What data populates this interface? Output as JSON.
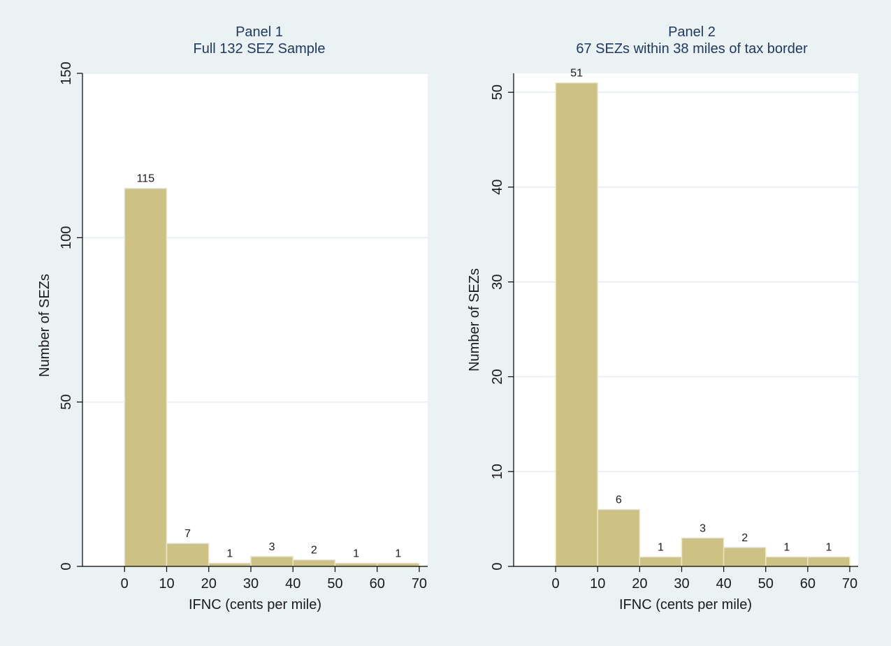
{
  "figure": {
    "background": "#eaf2f3",
    "plot_background": "#ffffff",
    "bar_fill": "#cdc284",
    "bar_stroke": "#ece7c8",
    "grid_color": "#e4eef0",
    "text_color": "#1a1a1a",
    "title_color": "#1f3864"
  },
  "chart_data": [
    {
      "type": "bar",
      "title": "Panel 1",
      "subtitle": "Full 132 SEZ Sample",
      "xlabel": "IFNC (cents per mile)",
      "ylabel": "Number of SEZs",
      "bins": [
        [
          0,
          10
        ],
        [
          10,
          20
        ],
        [
          20,
          30
        ],
        [
          30,
          40
        ],
        [
          40,
          50
        ],
        [
          50,
          60
        ],
        [
          60,
          70
        ]
      ],
      "values": [
        115,
        7,
        1,
        3,
        2,
        1,
        1
      ],
      "labels": [
        "115",
        "7",
        "1",
        "3",
        "2",
        "1",
        "1"
      ],
      "xlim": [
        -10,
        72
      ],
      "ylim": [
        0,
        150
      ],
      "xticks": [
        0,
        10,
        20,
        30,
        40,
        50,
        60,
        70
      ],
      "xtick_labels": [
        "0",
        "10",
        "20",
        "30",
        "40",
        "50",
        "60",
        "70"
      ],
      "yticks": [
        0,
        50,
        100,
        150
      ],
      "ytick_labels": [
        "0",
        "50",
        "100",
        "150"
      ],
      "grid": true,
      "legend": "none"
    },
    {
      "type": "bar",
      "title": "Panel 2",
      "subtitle": "67 SEZs within 38 miles of tax border",
      "xlabel": "IFNC (cents per mile)",
      "ylabel": "Number of SEZs",
      "bins": [
        [
          0,
          10
        ],
        [
          10,
          20
        ],
        [
          20,
          30
        ],
        [
          30,
          40
        ],
        [
          40,
          50
        ],
        [
          50,
          60
        ],
        [
          60,
          70
        ]
      ],
      "values": [
        51,
        6,
        1,
        3,
        2,
        1,
        1
      ],
      "labels": [
        "51",
        "6",
        "1",
        "3",
        "2",
        "1",
        "1"
      ],
      "xlim": [
        -10,
        72
      ],
      "ylim": [
        0,
        52
      ],
      "xticks": [
        0,
        10,
        20,
        30,
        40,
        50,
        60,
        70
      ],
      "xtick_labels": [
        "0",
        "10",
        "20",
        "30",
        "40",
        "50",
        "60",
        "70"
      ],
      "yticks": [
        0,
        10,
        20,
        30,
        40,
        50
      ],
      "ytick_labels": [
        "0",
        "10",
        "20",
        "30",
        "40",
        "50"
      ],
      "grid": true,
      "legend": "none"
    }
  ]
}
